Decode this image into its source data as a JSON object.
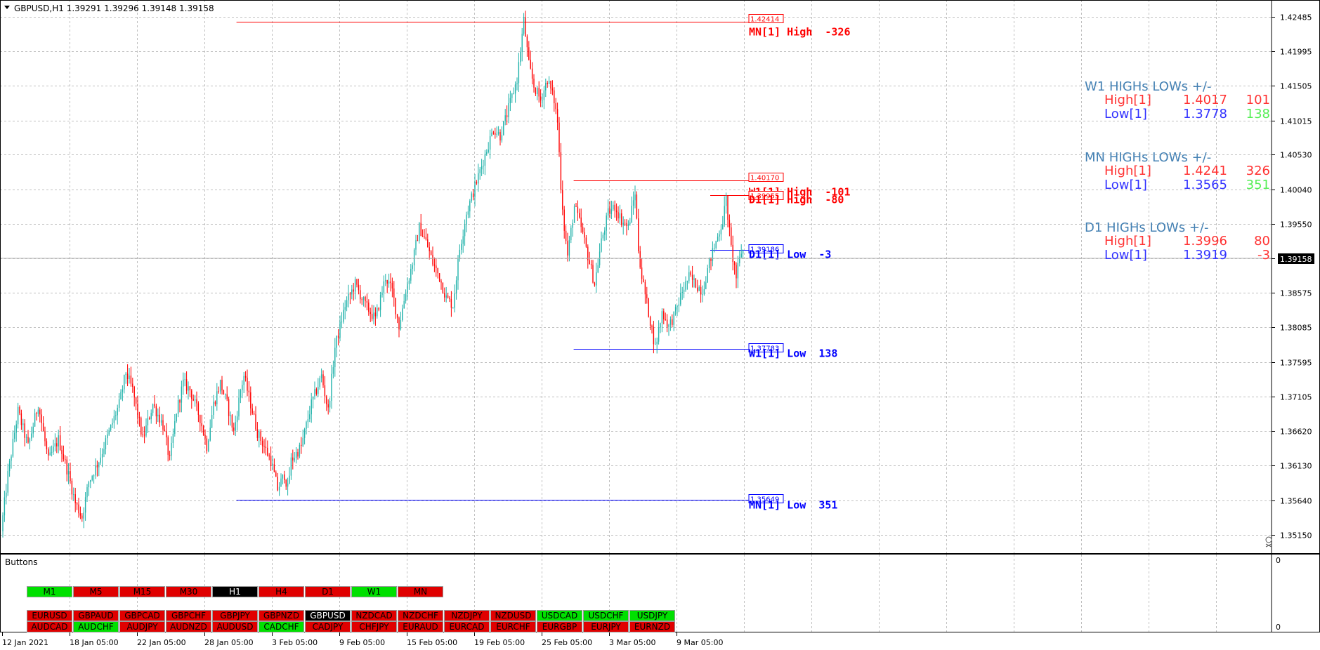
{
  "header": {
    "symbol_line": "GBPUSD,H1  1.39291 1.39296 1.39148 1.39158"
  },
  "price_axis": {
    "labels": [
      "1.42485",
      "1.41995",
      "1.41505",
      "1.41015",
      "1.40530",
      "1.40040",
      "1.39550",
      "1.39060",
      "1.38575",
      "1.38085",
      "1.37595",
      "1.37105",
      "1.36620",
      "1.36130",
      "1.35640",
      "1.35150"
    ],
    "current_price": "1.39158"
  },
  "time_axis": {
    "labels": [
      "12 Jan 2021",
      "18 Jan 05:00",
      "22 Jan 05:00",
      "28 Jan 05:00",
      "3 Feb 05:00",
      "9 Feb 05:00",
      "15 Feb 05:00",
      "19 Feb 05:00",
      "25 Feb 05:00",
      "3 Mar 05:00",
      "9 Mar 05:00"
    ]
  },
  "levels": [
    {
      "price_tag": "1.42414",
      "label": "MN[1] High  -326",
      "color": "#ff0000"
    },
    {
      "price_tag": "1.40170",
      "label": "W1[1] High  -101",
      "color": "#ff0000"
    },
    {
      "price_tag": "1.39955",
      "label": "D1[1] High  -80",
      "color": "#ff0000"
    },
    {
      "price_tag": "1.39186",
      "label": "D1[1] Low  -3",
      "color": "#0000ff"
    },
    {
      "price_tag": "1.37783",
      "label": "W1[1] Low  138",
      "color": "#0000ff"
    },
    {
      "price_tag": "1.35649",
      "label": "MN[1] Low  351",
      "color": "#0000ff"
    }
  ],
  "info_panel": [
    {
      "title": "W1 HIGHs LOWs +/-",
      "high_label": "High[1]",
      "high_value": "1.4017",
      "high_diff": "101",
      "low_label": "Low[1]",
      "low_value": "1.3778",
      "low_diff": "138"
    },
    {
      "title": "MN HIGHs LOWs +/-",
      "high_label": "High[1]",
      "high_value": "1.4241",
      "high_diff": "326",
      "low_label": "Low[1]",
      "low_value": "1.3565",
      "low_diff": "351"
    },
    {
      "title": "D1 HIGHs LOWs +/-",
      "high_label": "High[1]",
      "high_value": "1.3996",
      "high_diff": "80",
      "low_label": "Low[1]",
      "low_value": "1.3919",
      "low_diff": "-3"
    }
  ],
  "sub_window": {
    "title": "Buttons",
    "scale_top": "0",
    "scale_bottom": "0"
  },
  "timeframe_buttons": [
    {
      "label": "M1",
      "state": "green"
    },
    {
      "label": "M5",
      "state": "red"
    },
    {
      "label": "M15",
      "state": "red"
    },
    {
      "label": "M30",
      "state": "red"
    },
    {
      "label": "H1",
      "state": "black"
    },
    {
      "label": "H4",
      "state": "red"
    },
    {
      "label": "D1",
      "state": "red"
    },
    {
      "label": "W1",
      "state": "green"
    },
    {
      "label": "MN",
      "state": "red"
    }
  ],
  "pair_buttons_row1": [
    {
      "label": "EURUSD",
      "state": "red"
    },
    {
      "label": "GBPAUD",
      "state": "red"
    },
    {
      "label": "GBPCAD",
      "state": "red"
    },
    {
      "label": "GBPCHF",
      "state": "red"
    },
    {
      "label": "GBPJPY",
      "state": "red"
    },
    {
      "label": "GBPNZD",
      "state": "red"
    },
    {
      "label": "GBPUSD",
      "state": "black"
    },
    {
      "label": "NZDCAD",
      "state": "red"
    },
    {
      "label": "NZDCHF",
      "state": "red"
    },
    {
      "label": "NZDJPY",
      "state": "red"
    },
    {
      "label": "NZDUSD",
      "state": "red"
    },
    {
      "label": "USDCAD",
      "state": "green"
    },
    {
      "label": "USDCHF",
      "state": "green"
    },
    {
      "label": "USDJPY",
      "state": "green"
    }
  ],
  "pair_buttons_row2": [
    {
      "label": "AUDCAD",
      "state": "red"
    },
    {
      "label": "AUDCHF",
      "state": "green"
    },
    {
      "label": "AUDJPY",
      "state": "red"
    },
    {
      "label": "AUDNZD",
      "state": "red"
    },
    {
      "label": "AUDUSD",
      "state": "red"
    },
    {
      "label": "CADCHF",
      "state": "green"
    },
    {
      "label": "CADJPY",
      "state": "red"
    },
    {
      "label": "CHFJPY",
      "state": "red"
    },
    {
      "label": "EURAUD",
      "state": "red"
    },
    {
      "label": "EURCAD",
      "state": "red"
    },
    {
      "label": "EURCHF",
      "state": "red"
    },
    {
      "label": "EURGBP",
      "state": "red"
    },
    {
      "label": "EURJPY",
      "state": "red"
    },
    {
      "label": "EURNZD",
      "state": "red"
    }
  ],
  "colors": {
    "bull": "#20b2aa",
    "bear": "#ff0000",
    "grid": "#c0c0c0",
    "btn_green": "#00e000",
    "btn_red": "#e00000",
    "btn_black": "#000000",
    "high_line": "#ff0000",
    "low_line": "#0000ff",
    "info_title": "#4682b4",
    "info_diff_pos": "#00e000"
  },
  "chart_data": {
    "type": "candlestick",
    "symbol": "GBPUSD",
    "timeframe": "H1",
    "ylim": [
      1.3495,
      1.4268
    ],
    "last_price": 1.39158,
    "path": [
      [
        0,
        1.352
      ],
      [
        4,
        1.36
      ],
      [
        10,
        1.369
      ],
      [
        16,
        1.364
      ],
      [
        22,
        1.37
      ],
      [
        28,
        1.362
      ],
      [
        34,
        1.365
      ],
      [
        40,
        1.36
      ],
      [
        44,
        1.356
      ],
      [
        48,
        1.354
      ],
      [
        52,
        1.359
      ],
      [
        58,
        1.362
      ],
      [
        64,
        1.366
      ],
      [
        70,
        1.37
      ],
      [
        74,
        1.3745
      ],
      [
        78,
        1.372
      ],
      [
        84,
        1.365
      ],
      [
        90,
        1.37
      ],
      [
        96,
        1.367
      ],
      [
        100,
        1.362
      ],
      [
        104,
        1.369
      ],
      [
        108,
        1.373
      ],
      [
        112,
        1.372
      ],
      [
        118,
        1.368
      ],
      [
        122,
        1.364
      ],
      [
        126,
        1.37
      ],
      [
        130,
        1.373
      ],
      [
        134,
        1.37
      ],
      [
        138,
        1.366
      ],
      [
        142,
        1.372
      ],
      [
        144,
        1.374
      ],
      [
        148,
        1.37
      ],
      [
        152,
        1.366
      ],
      [
        156,
        1.364
      ],
      [
        160,
        1.362
      ],
      [
        164,
        1.358
      ],
      [
        168,
        1.36
      ],
      [
        170,
        1.358
      ],
      [
        172,
        1.362
      ],
      [
        178,
        1.364
      ],
      [
        184,
        1.37
      ],
      [
        190,
        1.374
      ],
      [
        194,
        1.369
      ],
      [
        198,
        1.378
      ],
      [
        204,
        1.384
      ],
      [
        210,
        1.387
      ],
      [
        216,
        1.384
      ],
      [
        222,
        1.382
      ],
      [
        228,
        1.388
      ],
      [
        232,
        1.386
      ],
      [
        236,
        1.381
      ],
      [
        240,
        1.386
      ],
      [
        244,
        1.39
      ],
      [
        248,
        1.395
      ],
      [
        252,
        1.393
      ],
      [
        256,
        1.39
      ],
      [
        260,
        1.388
      ],
      [
        264,
        1.385
      ],
      [
        268,
        1.384
      ],
      [
        272,
        1.392
      ],
      [
        276,
        1.397
      ],
      [
        280,
        1.4
      ],
      [
        284,
        1.403
      ],
      [
        288,
        1.406
      ],
      [
        292,
        1.409
      ],
      [
        296,
        1.408
      ],
      [
        300,
        1.411
      ],
      [
        306,
        1.416
      ],
      [
        310,
        1.4243
      ],
      [
        313,
        1.418
      ],
      [
        316,
        1.415
      ],
      [
        320,
        1.413
      ],
      [
        324,
        1.416
      ],
      [
        328,
        1.413
      ],
      [
        330,
        1.41
      ],
      [
        332,
        1.401
      ],
      [
        334,
        1.395
      ],
      [
        336,
        1.391
      ],
      [
        340,
        1.398
      ],
      [
        344,
        1.395
      ],
      [
        348,
        1.391
      ],
      [
        352,
        1.387
      ],
      [
        356,
        1.393
      ],
      [
        360,
        1.397
      ],
      [
        364,
        1.398
      ],
      [
        368,
        1.396
      ],
      [
        372,
        1.395
      ],
      [
        376,
        1.4
      ],
      [
        378,
        1.392
      ],
      [
        380,
        1.388
      ],
      [
        384,
        1.383
      ],
      [
        388,
        1.378
      ],
      [
        392,
        1.383
      ],
      [
        396,
        1.381
      ],
      [
        400,
        1.383
      ],
      [
        404,
        1.386
      ],
      [
        408,
        1.388
      ],
      [
        412,
        1.387
      ],
      [
        416,
        1.386
      ],
      [
        420,
        1.39
      ],
      [
        424,
        1.393
      ],
      [
        428,
        1.396
      ],
      [
        430,
        1.399
      ],
      [
        433,
        1.392
      ],
      [
        436,
        1.388
      ],
      [
        439,
        1.3916
      ]
    ],
    "levels": [
      {
        "name": "MN[1] High",
        "price": 1.42414,
        "start": 139
      },
      {
        "name": "W1[1] High",
        "price": 1.4017,
        "start": 339
      },
      {
        "name": "D1[1] High",
        "price": 1.39955,
        "start": 420
      },
      {
        "name": "D1[1] Low",
        "price": 1.39186,
        "start": 420
      },
      {
        "name": "W1[1] Low",
        "price": 1.37783,
        "start": 339
      },
      {
        "name": "MN[1] Low",
        "price": 1.35649,
        "start": 139
      }
    ]
  }
}
